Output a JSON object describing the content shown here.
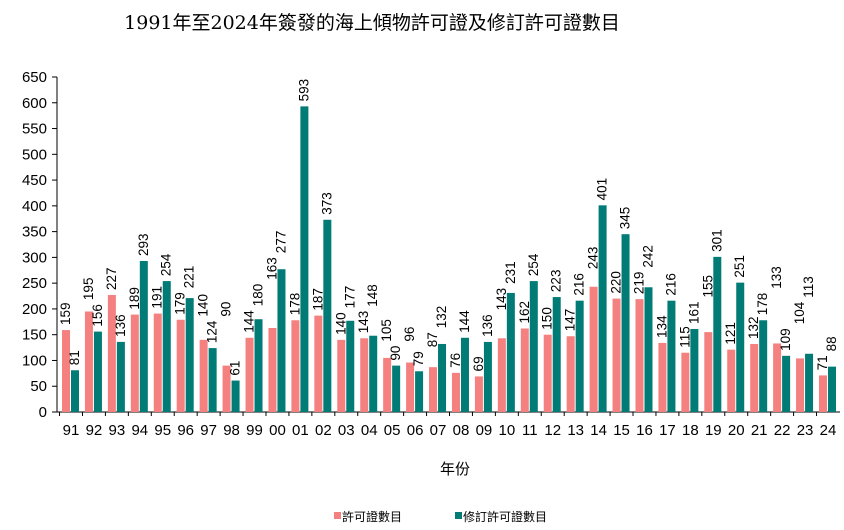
{
  "chart_data": {
    "type": "bar",
    "title": "1991年至2024年簽發的海上傾物許可證及修訂許可證數目",
    "xlabel": "年份",
    "ylabel": "",
    "ylim": [
      0,
      650
    ],
    "yticks": [
      0,
      50,
      100,
      150,
      200,
      250,
      300,
      350,
      400,
      450,
      500,
      550,
      600,
      650
    ],
    "grid": false,
    "legend_position": "bottom",
    "categories": [
      "91",
      "92",
      "93",
      "94",
      "95",
      "96",
      "97",
      "98",
      "99",
      "00",
      "01",
      "02",
      "03",
      "04",
      "05",
      "06",
      "07",
      "08",
      "09",
      "10",
      "11",
      "12",
      "13",
      "14",
      "15",
      "16",
      "17",
      "18",
      "19",
      "20",
      "21",
      "22",
      "23",
      "24"
    ],
    "series": [
      {
        "name": "許可證數目",
        "color": "#F4817F",
        "values": [
          159,
          195,
          227,
          189,
          191,
          179,
          140,
          90,
          144,
          163,
          178,
          187,
          140,
          143,
          105,
          96,
          87,
          76,
          69,
          143,
          162,
          150,
          147,
          243,
          220,
          219,
          134,
          115,
          155,
          121,
          132,
          133,
          104,
          71
        ]
      },
      {
        "name": "修訂許可證數目",
        "color": "#007B75",
        "values": [
          81,
          156,
          136,
          293,
          254,
          221,
          124,
          61,
          180,
          277,
          593,
          373,
          177,
          148,
          90,
          79,
          132,
          144,
          136,
          231,
          254,
          223,
          216,
          401,
          345,
          242,
          216,
          161,
          301,
          251,
          178,
          109,
          113,
          88
        ]
      }
    ]
  }
}
